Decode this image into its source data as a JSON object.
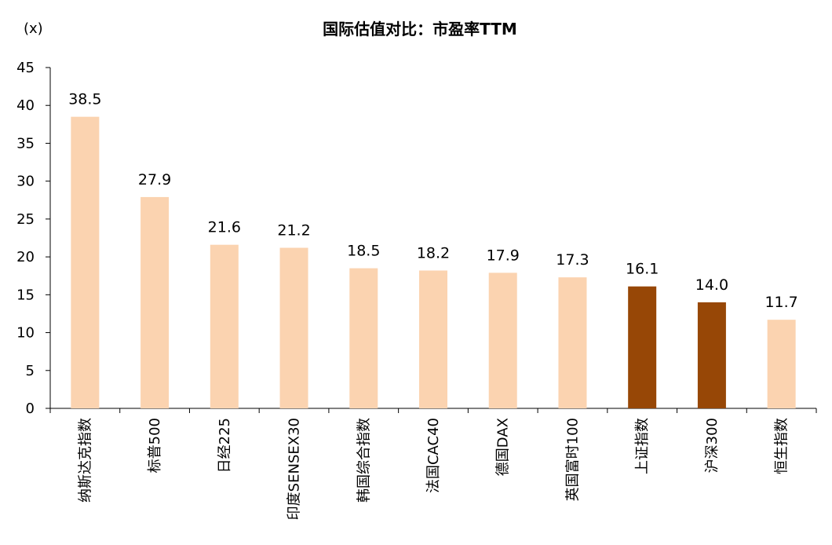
{
  "chart_data": {
    "type": "bar",
    "title": "国际估值对比：市盈率TTM",
    "unit_label": "(x)",
    "categories": [
      "纳斯达克指数",
      "标普500",
      "日经225",
      "印度SENSEX30",
      "韩国综合指数",
      "法国CAC40",
      "德国DAX",
      "英国富时100",
      "上证指数",
      "沪深300",
      "恒生指数"
    ],
    "values": [
      38.5,
      27.9,
      21.6,
      21.2,
      18.5,
      18.2,
      17.9,
      17.3,
      16.1,
      14.0,
      11.7
    ],
    "value_labels": [
      "38.5",
      "27.9",
      "21.6",
      "21.2",
      "18.5",
      "18.2",
      "17.9",
      "17.3",
      "16.1",
      "14.0",
      "11.7"
    ],
    "highlight": [
      false,
      false,
      false,
      false,
      false,
      false,
      false,
      false,
      true,
      true,
      false
    ],
    "ylim": [
      0,
      45
    ],
    "yticks": [
      "0",
      "5",
      "10",
      "15",
      "20",
      "25",
      "30",
      "35",
      "40",
      "45"
    ],
    "grid": false,
    "legend": "none",
    "colors": {
      "default": "#FBD3B0",
      "highlight": "#974706",
      "axis": "#000000"
    }
  }
}
